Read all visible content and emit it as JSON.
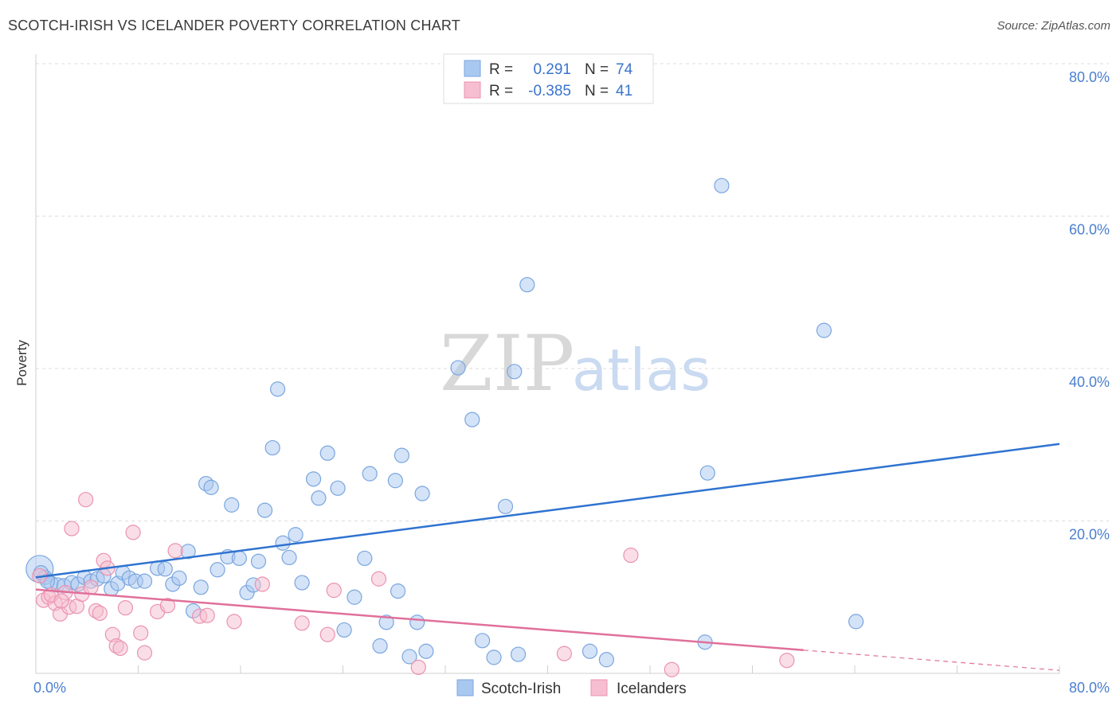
{
  "title": "SCOTCH-IRISH VS ICELANDER POVERTY CORRELATION CHART",
  "source": "Source: ZipAtlas.com",
  "watermark": {
    "zip": "ZIP",
    "atlas": "atlas"
  },
  "colors": {
    "blue_fill": "#a9c8f0",
    "blue_stroke": "#7aa6df",
    "blue_line": "#2f73d0",
    "pink_fill": "#f6bed0",
    "pink_stroke": "#ea93b1",
    "pink_line": "#e0709a",
    "tick_label": "#4a7fd0",
    "grid": "#dddddd"
  },
  "legend": {
    "rows": [
      {
        "r_label": "R =",
        "r_value": "0.291",
        "n_label": "N =",
        "n_value": "74"
      },
      {
        "r_label": "R =",
        "r_value": "-0.385",
        "n_label": "N =",
        "n_value": "41"
      }
    ]
  },
  "chart_data": {
    "type": "scatter",
    "ylabel": "Poverty",
    "xlim": [
      0,
      80
    ],
    "ylim": [
      0,
      80
    ],
    "x_tick_labels": [
      {
        "value": 0,
        "label": "0.0%"
      },
      {
        "value": 80,
        "label": "80.0%"
      }
    ],
    "y_tick_labels": [
      {
        "value": 20,
        "label": "20.0%"
      },
      {
        "value": 40,
        "label": "40.0%"
      },
      {
        "value": 60,
        "label": "60.0%"
      },
      {
        "value": 80,
        "label": "80.0%"
      }
    ],
    "grid": true,
    "legend_position": "bottom",
    "series": [
      {
        "name": "Scotch-Irish",
        "color": "blue",
        "trend": {
          "x": [
            0,
            80
          ],
          "y": [
            12.6,
            30.1
          ]
        },
        "points": [
          [
            0.3,
            13.7
          ],
          [
            0.7,
            12.6
          ],
          [
            1.2,
            11.8
          ],
          [
            1.7,
            11.6
          ],
          [
            2.2,
            11.5
          ],
          [
            2.8,
            11.9
          ],
          [
            3.3,
            11.7
          ],
          [
            3.8,
            12.6
          ],
          [
            4.3,
            12.1
          ],
          [
            4.8,
            12.4
          ],
          [
            5.3,
            12.8
          ],
          [
            5.9,
            11.1
          ],
          [
            6.4,
            11.8
          ],
          [
            6.8,
            13.2
          ],
          [
            7.3,
            12.5
          ],
          [
            7.8,
            12.1
          ],
          [
            8.5,
            12.1
          ],
          [
            9.5,
            13.8
          ],
          [
            10.1,
            13.7
          ],
          [
            10.7,
            11.7
          ],
          [
            11.2,
            12.5
          ],
          [
            11.9,
            16.0
          ],
          [
            12.3,
            8.2
          ],
          [
            12.9,
            11.3
          ],
          [
            13.3,
            24.9
          ],
          [
            13.7,
            24.4
          ],
          [
            14.2,
            13.6
          ],
          [
            15.0,
            15.3
          ],
          [
            15.3,
            22.1
          ],
          [
            15.9,
            15.1
          ],
          [
            16.5,
            10.6
          ],
          [
            17.0,
            11.6
          ],
          [
            17.4,
            14.7
          ],
          [
            17.9,
            21.4
          ],
          [
            18.5,
            29.6
          ],
          [
            18.9,
            37.3
          ],
          [
            19.3,
            17.1
          ],
          [
            19.8,
            15.2
          ],
          [
            20.3,
            18.2
          ],
          [
            20.8,
            11.9
          ],
          [
            21.7,
            25.5
          ],
          [
            22.1,
            23.0
          ],
          [
            22.8,
            28.9
          ],
          [
            23.6,
            24.3
          ],
          [
            24.1,
            5.7
          ],
          [
            24.9,
            10.0
          ],
          [
            25.7,
            15.1
          ],
          [
            26.1,
            26.2
          ],
          [
            26.9,
            3.6
          ],
          [
            27.4,
            6.7
          ],
          [
            28.1,
            25.3
          ],
          [
            28.3,
            10.8
          ],
          [
            28.6,
            28.6
          ],
          [
            29.2,
            2.2
          ],
          [
            29.8,
            6.7
          ],
          [
            30.2,
            23.6
          ],
          [
            30.5,
            2.9
          ],
          [
            33.0,
            40.1
          ],
          [
            34.1,
            33.3
          ],
          [
            34.9,
            4.3
          ],
          [
            35.8,
            2.1
          ],
          [
            36.7,
            21.9
          ],
          [
            37.4,
            39.6
          ],
          [
            37.7,
            2.5
          ],
          [
            38.4,
            51.0
          ],
          [
            43.3,
            2.9
          ],
          [
            44.6,
            1.8
          ],
          [
            52.3,
            4.1
          ],
          [
            52.5,
            26.3
          ],
          [
            53.6,
            64.0
          ],
          [
            61.6,
            45.0
          ],
          [
            64.1,
            6.8
          ],
          [
            0.4,
            13.2
          ],
          [
            0.9,
            12.1
          ]
        ]
      },
      {
        "name": "Icelanders",
        "color": "pink",
        "trend": {
          "x": [
            0,
            80
          ],
          "y": [
            11.0,
            0.4
          ]
        },
        "trend_solid_until": 60,
        "points": [
          [
            0.3,
            12.8
          ],
          [
            0.6,
            9.6
          ],
          [
            1.0,
            10.0
          ],
          [
            1.5,
            9.2
          ],
          [
            1.9,
            7.8
          ],
          [
            2.3,
            10.6
          ],
          [
            2.6,
            8.7
          ],
          [
            2.8,
            19.0
          ],
          [
            3.2,
            8.8
          ],
          [
            3.6,
            10.4
          ],
          [
            3.9,
            22.8
          ],
          [
            4.3,
            11.3
          ],
          [
            4.7,
            8.2
          ],
          [
            5.0,
            7.9
          ],
          [
            5.3,
            14.8
          ],
          [
            5.6,
            13.8
          ],
          [
            6.0,
            5.1
          ],
          [
            6.3,
            3.6
          ],
          [
            6.6,
            3.3
          ],
          [
            7.0,
            8.6
          ],
          [
            7.6,
            18.5
          ],
          [
            8.2,
            5.3
          ],
          [
            8.5,
            2.7
          ],
          [
            9.5,
            8.1
          ],
          [
            10.3,
            8.9
          ],
          [
            10.9,
            16.1
          ],
          [
            12.8,
            7.5
          ],
          [
            13.4,
            7.6
          ],
          [
            15.5,
            6.8
          ],
          [
            17.7,
            11.7
          ],
          [
            20.8,
            6.6
          ],
          [
            22.8,
            5.1
          ],
          [
            23.3,
            10.9
          ],
          [
            26.8,
            12.4
          ],
          [
            29.9,
            0.8
          ],
          [
            41.3,
            2.6
          ],
          [
            46.5,
            15.5
          ],
          [
            49.7,
            0.5
          ],
          [
            58.7,
            1.7
          ],
          [
            1.2,
            10.3
          ],
          [
            2.0,
            9.5
          ]
        ]
      }
    ]
  },
  "bottom_legend": [
    {
      "name": "Scotch-Irish",
      "color": "blue"
    },
    {
      "name": "Icelanders",
      "color": "pink"
    }
  ]
}
